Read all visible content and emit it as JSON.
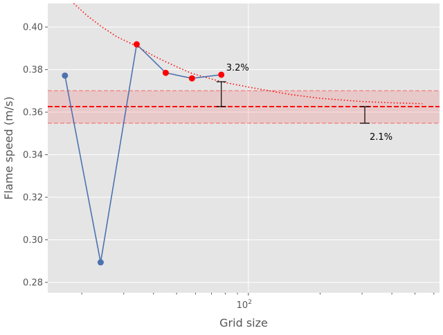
{
  "chart_data": {
    "type": "line",
    "title": "",
    "xlabel": "Grid size",
    "ylabel": "Flame speed (m/s)",
    "xscale": "log",
    "xlim": [
      14.4,
      634
    ],
    "ylim": [
      0.2751,
      0.4111
    ],
    "grid": true,
    "x_ticks": [
      {
        "value": 100,
        "label": "10^2"
      }
    ],
    "x_minor_ticks": [
      20,
      30,
      40,
      50,
      60,
      70,
      80,
      90,
      200,
      300,
      400,
      500,
      600
    ],
    "y_ticks": [
      0.28,
      0.3,
      0.32,
      0.34,
      0.36,
      0.38,
      0.4
    ],
    "y_tick_labels": [
      "0.28",
      "0.30",
      "0.32",
      "0.34",
      "0.36",
      "0.38",
      "0.40"
    ],
    "series": [
      {
        "kind": "line-markers",
        "color": "#4c72b0",
        "x": [
          17,
          24,
          34,
          45,
          58,
          77
        ],
        "y": [
          0.3772,
          0.2894,
          0.3919,
          0.3785,
          0.3759,
          0.3776
        ],
        "highlight_color": "#ff0000",
        "highlighted_indices": [
          2,
          3,
          4,
          5
        ]
      },
      {
        "kind": "fit-dotted",
        "color": "#ff0000",
        "x": [
          18.5,
          21,
          24,
          28,
          34,
          40,
          45,
          52,
          58,
          67,
          77,
          100,
          150,
          200,
          300,
          400,
          537
        ],
        "y": [
          0.4111,
          0.4055,
          0.4005,
          0.3955,
          0.391,
          0.3865,
          0.3837,
          0.3805,
          0.3782,
          0.3762,
          0.3743,
          0.3718,
          0.3683,
          0.3665,
          0.365,
          0.3644,
          0.364
        ]
      }
    ],
    "reference": {
      "value": 0.3626,
      "band": [
        0.3548,
        0.3701
      ],
      "color": "#ff0000"
    },
    "error_bars": [
      {
        "x": 77,
        "y_low": 0.3626,
        "y_high": 0.3743,
        "label": "3.2%"
      },
      {
        "x": 308,
        "y_low": 0.3548,
        "y_high": 0.3626,
        "label": "2.1%"
      }
    ]
  }
}
